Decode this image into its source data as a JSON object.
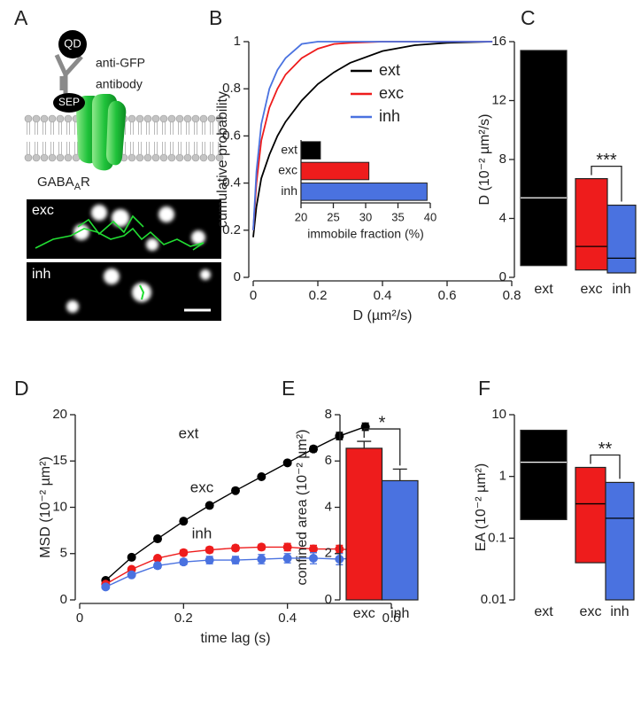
{
  "panel_a": {
    "panel": "A",
    "qd": "QD",
    "antibody": [
      "anti-GFP",
      "antibody"
    ],
    "sep": "SEP",
    "receptor": [
      "GABA",
      "A",
      "R"
    ],
    "images": [
      "exc",
      "inh"
    ]
  },
  "chart_data": [
    {
      "panel": "B",
      "type": "line",
      "xlabel": "D (µm²/s)",
      "ylabel": "cumulative probability",
      "x": [
        0,
        0.01,
        0.025,
        0.05,
        0.075,
        0.1,
        0.15,
        0.2,
        0.25,
        0.3,
        0.4,
        0.5,
        0.6,
        0.74
      ],
      "series": [
        {
          "name": "ext",
          "color": "#000000",
          "values": [
            0.17,
            0.3,
            0.42,
            0.52,
            0.6,
            0.66,
            0.75,
            0.82,
            0.87,
            0.91,
            0.96,
            0.985,
            0.995,
            1
          ]
        },
        {
          "name": "exc",
          "color": "#ee1c1c",
          "values": [
            0.2,
            0.4,
            0.58,
            0.72,
            0.8,
            0.86,
            0.93,
            0.97,
            0.99,
            0.995,
            1,
            1,
            1,
            1
          ]
        },
        {
          "name": "inh",
          "color": "#4a72e0",
          "values": [
            0.2,
            0.45,
            0.65,
            0.8,
            0.88,
            0.93,
            0.99,
            1,
            1,
            1,
            1,
            1,
            1,
            1
          ]
        }
      ],
      "xlim": [
        0,
        0.8
      ],
      "xticks": [
        0,
        0.2,
        0.4,
        0.6,
        0.8
      ],
      "ylim": [
        0,
        1
      ],
      "yticks": [
        0,
        0.2,
        0.4,
        0.6,
        0.8,
        1
      ],
      "legend": "upper right"
    },
    {
      "type": "bar",
      "orientation": "horizontal",
      "xlabel": "immobile fraction (%)",
      "categories": [
        "ext",
        "exc",
        "inh"
      ],
      "values": [
        23,
        30.5,
        39.5
      ],
      "colors": [
        "#000000",
        "#ee1c1c",
        "#4a72e0"
      ],
      "xlim": [
        20,
        40
      ],
      "xticks": [
        20,
        25,
        30,
        35,
        40
      ]
    },
    {
      "panel": "C",
      "type": "box",
      "ylabel": "D (10⁻² µm²/s)",
      "categories": [
        "ext",
        "exc",
        "inh"
      ],
      "low": [
        0.8,
        0.5,
        0.3
      ],
      "high": [
        15.4,
        6.7,
        4.9
      ],
      "median": [
        5.4,
        2.1,
        1.3
      ],
      "colors": [
        "#000000",
        "#ee1c1c",
        "#4a72e0"
      ],
      "ylim": [
        0,
        16
      ],
      "yticks": [
        0,
        4,
        8,
        12,
        16
      ],
      "significance": "***"
    },
    {
      "panel": "D",
      "type": "line",
      "xlabel": "time lag (s)",
      "ylabel": "MSD (10⁻² µm²)",
      "markers": true,
      "x": [
        0.05,
        0.1,
        0.15,
        0.2,
        0.25,
        0.3,
        0.35,
        0.4,
        0.45,
        0.5,
        0.55
      ],
      "series": [
        {
          "name": "ext",
          "color": "#000000",
          "values": [
            2.1,
            4.6,
            6.6,
            8.5,
            10.2,
            11.8,
            13.3,
            14.8,
            16.3,
            17.7,
            18.7
          ],
          "errors": [
            0.2,
            0.2,
            0.2,
            0.2,
            0.2,
            0.2,
            0.2,
            0.2,
            0.3,
            0.4,
            0.4
          ]
        },
        {
          "name": "exc",
          "color": "#ee1c1c",
          "values": [
            1.7,
            3.3,
            4.5,
            5.1,
            5.4,
            5.6,
            5.7,
            5.7,
            5.5,
            5.5,
            5.3
          ],
          "errors": [
            0.2,
            0.2,
            0.2,
            0.3,
            0.3,
            0.3,
            0.3,
            0.4,
            0.4,
            0.4,
            0.4
          ]
        },
        {
          "name": "inh",
          "color": "#4a72e0",
          "values": [
            1.4,
            2.7,
            3.7,
            4.1,
            4.3,
            4.3,
            4.4,
            4.5,
            4.5,
            4.4,
            4.6
          ],
          "errors": [
            0.2,
            0.2,
            0.3,
            0.3,
            0.4,
            0.4,
            0.5,
            0.5,
            0.6,
            0.6,
            0.6
          ]
        }
      ],
      "xlim": [
        0,
        0.6
      ],
      "xticks": [
        0,
        0.2,
        0.4,
        0.6
      ],
      "ylim": [
        0,
        20
      ],
      "yticks": [
        0,
        5,
        10,
        15,
        20
      ]
    },
    {
      "panel": "E",
      "type": "bar",
      "ylabel": "confined area (10⁻² µm²)",
      "categories": [
        "exc",
        "inh"
      ],
      "values": [
        6.55,
        5.15
      ],
      "errors": [
        0.3,
        0.5
      ],
      "colors": [
        "#ee1c1c",
        "#4a72e0"
      ],
      "ylim": [
        0,
        8
      ],
      "yticks": [
        0,
        2,
        4,
        6,
        8
      ],
      "significance": "*"
    },
    {
      "panel": "F",
      "type": "box",
      "ylabel": "EA (10⁻² µm²)",
      "categories": [
        "ext",
        "exc",
        "inh"
      ],
      "low": [
        0.2,
        0.04,
        0.01
      ],
      "high": [
        5.6,
        1.4,
        0.8
      ],
      "median": [
        1.7,
        0.36,
        0.21
      ],
      "colors": [
        "#000000",
        "#ee1c1c",
        "#4a72e0"
      ],
      "ylim": [
        0.01,
        10
      ],
      "yticks": [
        0.01,
        0.1,
        1,
        10
      ],
      "yscale": "log",
      "significance": "**"
    }
  ]
}
